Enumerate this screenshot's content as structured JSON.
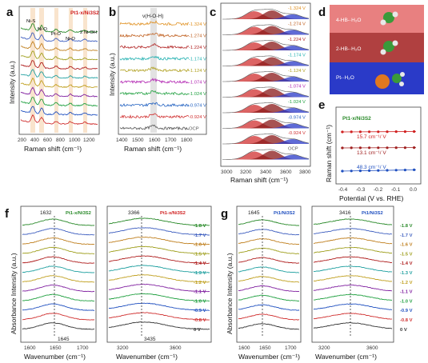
{
  "panel_letters": [
    "a",
    "b",
    "c",
    "d",
    "e",
    "f",
    "g"
  ],
  "a": {
    "title": "Pt1-x/Ni3S2",
    "peaks": [
      "Ni-S",
      "Ni-O",
      "Pt-O",
      "Ni-O",
      "2 Ni-OH"
    ],
    "xlabel": "Raman shift (cm⁻¹)",
    "ylabel": "Intensity (a.u.)",
    "xticks": [
      "200",
      "400",
      "600",
      "800",
      "1000",
      "1200"
    ]
  },
  "b": {
    "peak": "ν(H-O-H)",
    "xlabel": "Raman shift (cm⁻¹)",
    "ylabel": "Intensity (a.u.)",
    "xticks": [
      "1400",
      "1500",
      "1600",
      "1700",
      "1800"
    ],
    "potentials": [
      "-1.324 V",
      "-1.274 V",
      "-1.224 V",
      "-1.174 V",
      "-1.124 V",
      "-1.074 V",
      "-1.024 V",
      "-0.974 V",
      "-0.924 V",
      "OCP"
    ],
    "colors": [
      "#e09020",
      "#c06020",
      "#b02020",
      "#20b0b0",
      "#b0a020",
      "#b020b0",
      "#20a040",
      "#2060c0",
      "#d03030",
      "#555555"
    ]
  },
  "c": {
    "xlabel": "Raman shift (cm⁻¹)",
    "xticks": [
      "3000",
      "3200",
      "3400",
      "3600",
      "3800"
    ],
    "potentials": [
      "-1.324 V",
      "-1.274 V",
      "-1.224 V",
      "-1.174 V",
      "-1.124 V",
      "-1.074 V",
      "-1.024 V",
      "-0.974 V",
      "-0.924 V",
      "OCP"
    ]
  },
  "d": {
    "bands": [
      "4-HB-·H₂O",
      "2-HB-·H₂O",
      "Pt-·H₂O"
    ],
    "band_colors": [
      "#e88080",
      "#b04040",
      "#2a3ac8"
    ]
  },
  "e": {
    "title": "Pt1-x/Ni3S2",
    "ylabel": "Raman shift (cm⁻¹)",
    "xlabel": "Potential (V vs. RHE)",
    "xticks": [
      "-0.4",
      "-0.3",
      "-0.2",
      "-0.1",
      "0.0"
    ],
    "slopes": [
      "15.7 cm⁻¹/ V",
      "13.1 cm⁻¹/ V",
      "48.3 cm⁻¹/ V"
    ]
  },
  "f": {
    "left_title": "Pt1-x/Ni3S2",
    "right_title": "Pt1-x/Ni3S2",
    "left_peak_top": "1632",
    "left_peak_bottom": "1645",
    "right_peak_top": "3366",
    "right_peak_bottom": "3435",
    "ylabel": "Absorbance Intensity (a.u.)",
    "xlabel": "Wavenumber (cm⁻¹)",
    "left_xticks": [
      "1600",
      "1650",
      "1700"
    ],
    "right_xticks": [
      "3200",
      "3600"
    ],
    "potentials": [
      "-1.8 V",
      "-1.7 V",
      "-1.6 V",
      "-1.5 V",
      "-1.4 V",
      "-1.3 V",
      "-1.2 V",
      "-1.1 V",
      "-1.0 V",
      "-0.9 V",
      "-0.8 V",
      "0 V"
    ]
  },
  "g": {
    "left_title": "Pt1/Ni3S2",
    "right_title": "Pt1/Ni3S2",
    "left_peak": "1645",
    "right_peak": "3416",
    "ylabel": "Absorbance Intensity (a.u.)",
    "xlabel": "Wavenumber (cm⁻¹)",
    "left_xticks": [
      "1600",
      "1650",
      "1700"
    ],
    "right_xticks": [
      "3200",
      "3600"
    ],
    "potentials": [
      "-1.8 V",
      "-1.7 V",
      "-1.6 V",
      "-1.5 V",
      "-1.4 V",
      "-1.3 V",
      "-1.2 V",
      "-1.1 V",
      "-1.0 V",
      "-0.9 V",
      "-0.8 V",
      "0 V"
    ]
  },
  "trace_colors": [
    "#2a8a2a",
    "#4060c0",
    "#c08020",
    "#a0a020",
    "#b02020",
    "#20a0a0",
    "#c0a020",
    "#8020a0",
    "#20a040",
    "#2050c0",
    "#d03030",
    "#333333"
  ]
}
